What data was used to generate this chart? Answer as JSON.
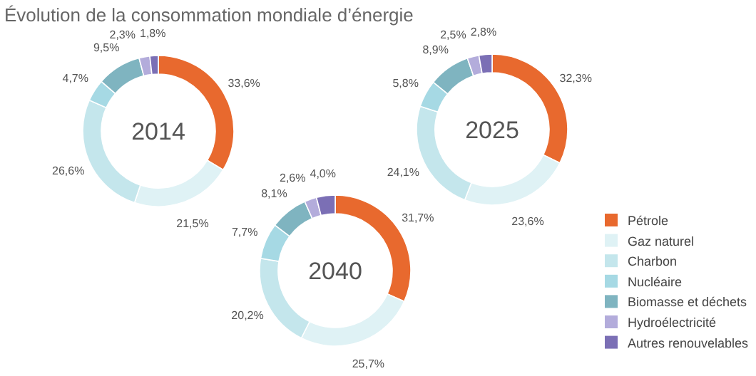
{
  "chart_data": [
    {
      "type": "donut",
      "title": "Évolution de la consommation mondiale d’énergie",
      "annotations": [
        "2014"
      ],
      "categories": [
        null,
        null,
        null,
        null,
        null,
        null,
        null
      ],
      "values": [
        33.6,
        21.5,
        26.6,
        4.7,
        9.5,
        2.3,
        1.8
      ],
      "value_labels": [
        "33,6%",
        "21,5%",
        "26,6%",
        "4,7%",
        "9,5%",
        "2,3%",
        "1,8%"
      ],
      "colors": [
        "#e8692e",
        "#dff2f5",
        "#c4e6ec",
        "#a6d9e4",
        "#7fb4c0",
        "#b3acdb",
        "#7b6fb5"
      ],
      "legend": false
    },
    {
      "type": "donut",
      "annotations": [
        "2025"
      ],
      "categories": [
        null,
        null,
        null,
        null,
        null,
        null,
        null
      ],
      "values": [
        32.3,
        23.6,
        24.1,
        5.8,
        8.9,
        2.5,
        2.8
      ],
      "value_labels": [
        "32,3%",
        "23,6%",
        "24,1%",
        "5,8%",
        "8,9%",
        "2,5%",
        "2,8%"
      ],
      "colors": [
        "#e8692e",
        "#dff2f5",
        "#c4e6ec",
        "#a6d9e4",
        "#7fb4c0",
        "#b3acdb",
        "#7b6fb5"
      ],
      "legend": false
    },
    {
      "type": "donut",
      "annotations": [
        "2040"
      ],
      "categories": [
        "Pétrole",
        "Gaz naturel",
        "Charbon",
        "Nucléaire",
        "Biomasse et déchets",
        "Hydroélectricité",
        "Autres renouvelables"
      ],
      "values": [
        31.7,
        25.7,
        20.2,
        7.7,
        8.1,
        2.6,
        4.0
      ],
      "value_labels": [
        "31,7%",
        "25,7%",
        "20,2%",
        "7,7%",
        "8,1%",
        "2,6%",
        "4,0%"
      ],
      "colors": [
        "#e8692e",
        "#dff2f5",
        "#c4e6ec",
        "#a6d9e4",
        "#7fb4c0",
        "#b3acdb",
        "#7b6fb5"
      ],
      "legend": "right"
    }
  ]
}
